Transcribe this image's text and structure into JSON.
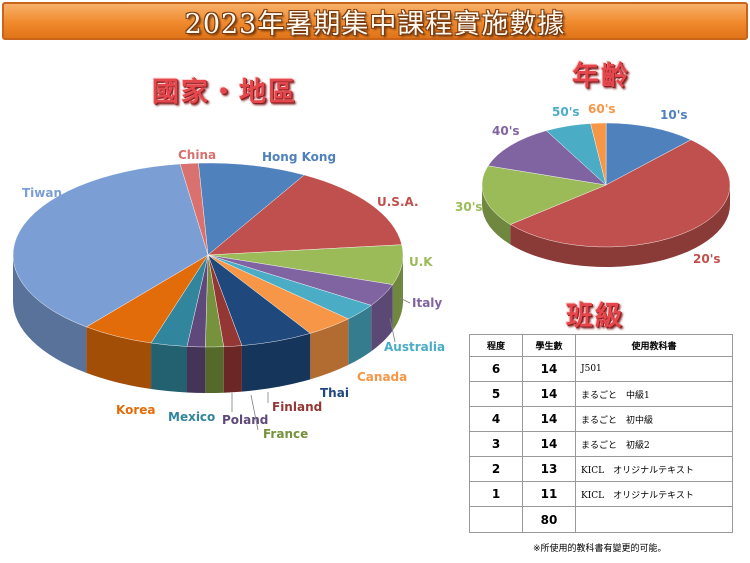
{
  "title": "2023年暑期集中課程實施數據",
  "country_title": "國家・地區",
  "age_title": "年齡",
  "class_title": "班級",
  "chart_data": [
    {
      "type": "pie",
      "title": "國家・地區",
      "slices": [
        {
          "label": "Hong Kong",
          "value": 9,
          "color": "#4f81bd"
        },
        {
          "label": "U.S.A.",
          "value": 15,
          "color": "#c0504d"
        },
        {
          "label": "U.K",
          "value": 7,
          "color": "#9bbb59"
        },
        {
          "label": "Italy",
          "value": 4,
          "color": "#8064a2"
        },
        {
          "label": "Australia",
          "value": 3,
          "color": "#4bacc6"
        },
        {
          "label": "Canada",
          "value": 4,
          "color": "#f79646"
        },
        {
          "label": "Thai",
          "value": 6,
          "color": "#1f497d"
        },
        {
          "label": "Finland",
          "value": 1.5,
          "color": "#943634"
        },
        {
          "label": "France",
          "value": 1.5,
          "color": "#76923c"
        },
        {
          "label": "Poland",
          "value": 1.5,
          "color": "#5f497a"
        },
        {
          "label": "Mexico",
          "value": 3,
          "color": "#31859c"
        },
        {
          "label": "Korea",
          "value": 6,
          "color": "#e36c0a"
        },
        {
          "label": "Tiwan",
          "value": 37,
          "color": "#7b9fd4"
        },
        {
          "label": "China",
          "value": 1.5,
          "color": "#d9716e"
        }
      ]
    },
    {
      "type": "pie",
      "title": "年齡",
      "slices": [
        {
          "label": "10's",
          "value": 12,
          "color": "#4f81bd"
        },
        {
          "label": "20's",
          "value": 52,
          "color": "#c0504d"
        },
        {
          "label": "30's",
          "value": 16,
          "color": "#9bbb59"
        },
        {
          "label": "40's",
          "value": 12,
          "color": "#8064a2"
        },
        {
          "label": "50's",
          "value": 6,
          "color": "#4bacc6"
        },
        {
          "label": "60's",
          "value": 2,
          "color": "#f79646"
        }
      ]
    },
    {
      "type": "table",
      "title": "班級",
      "headers": [
        "程度",
        "學生數",
        "使用教科書"
      ],
      "rows": [
        [
          "6",
          "14",
          "J501"
        ],
        [
          "5",
          "14",
          "まるごと　中級1"
        ],
        [
          "4",
          "14",
          "まるごと　初中級"
        ],
        [
          "3",
          "14",
          "まるごと　初級2"
        ],
        [
          "2",
          "13",
          "KICL　オリジナルテキスト"
        ],
        [
          "1",
          "11",
          "KICL　オリジナルテキスト"
        ]
      ],
      "total": "80"
    }
  ],
  "note": "※所使用的教科書有變更的可能。"
}
